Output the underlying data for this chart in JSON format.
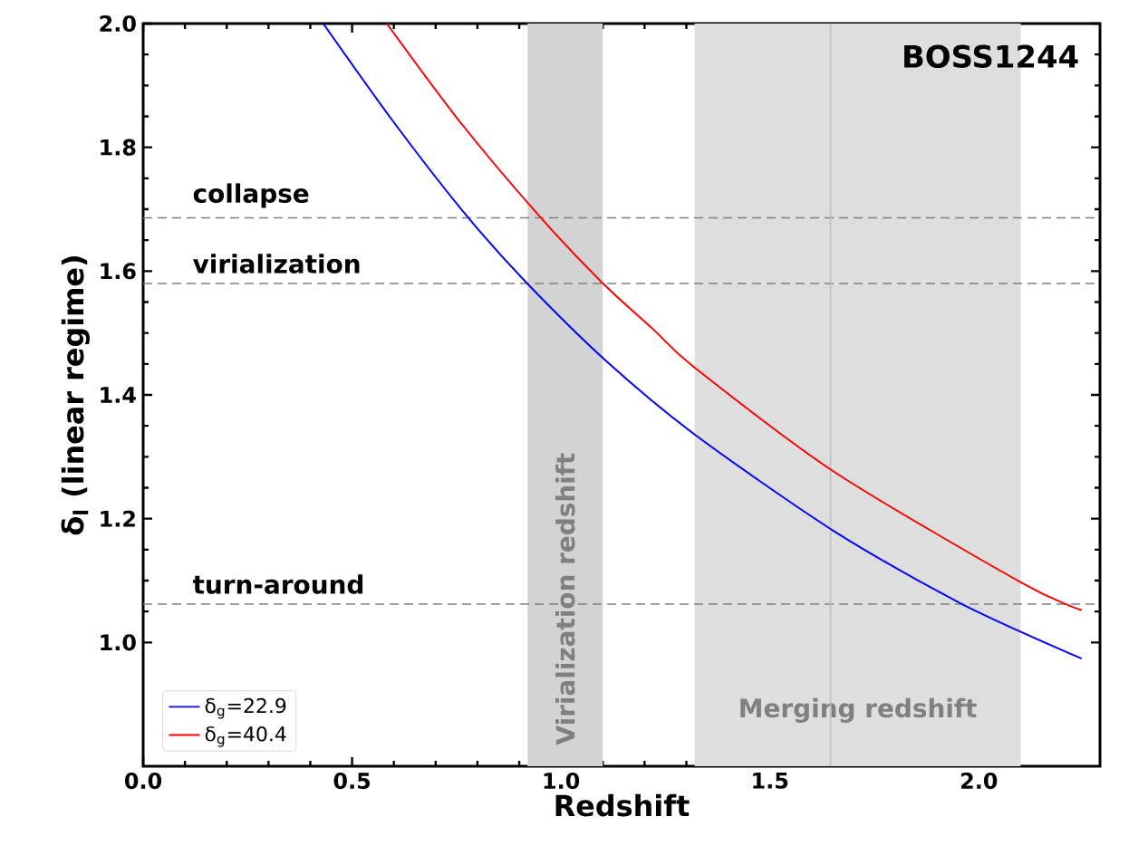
{
  "chart_data": {
    "type": "line",
    "xlabel": "Redshift",
    "ylabel": "δ$_{l}$ (linear regime)",
    "xlim": [
      0,
      2.29
    ],
    "ylim": [
      0.8,
      2.0
    ],
    "xticks": [
      {
        "value": 0,
        "label": "0.0"
      },
      {
        "value": 0.5,
        "label": "0.5"
      },
      {
        "value": 1,
        "label": "1.0"
      },
      {
        "value": 1.5,
        "label": "1.5"
      },
      {
        "value": 2,
        "label": "2.0"
      }
    ],
    "yticks": [
      {
        "value": 1,
        "label": "1.0"
      },
      {
        "value": 1.2,
        "label": "1.2"
      },
      {
        "value": 1.4,
        "label": "1.4"
      },
      {
        "value": 1.6,
        "label": "1.6"
      },
      {
        "value": 1.8,
        "label": "1.8"
      },
      {
        "value": 2,
        "label": "2.0"
      }
    ],
    "series": [
      {
        "name": "δ$_{g}$=22.9",
        "color": "#0000ff",
        "x": [
          0.431,
          0.597,
          0.771,
          0.915,
          1.111,
          1.32,
          1.653,
          1.957,
          2.246
        ],
        "values": [
          2.0,
          1.843,
          1.692,
          1.583,
          1.453,
          1.336,
          1.18,
          1.063,
          0.974
        ]
      },
      {
        "name": "δ$_{g}$=40.4",
        "color": "#ff0000",
        "x": [
          0.583,
          0.756,
          0.944,
          1.096,
          1.219,
          1.32,
          1.653,
          2.101,
          2.246
        ],
        "values": [
          2.0,
          1.843,
          1.692,
          1.583,
          1.507,
          1.444,
          1.276,
          1.097,
          1.052
        ]
      }
    ],
    "ref_lines": [
      {
        "axis": "y",
        "value": 1.686,
        "label": "collapse",
        "color": "#808080",
        "line_style": "dashed"
      },
      {
        "axis": "y",
        "value": 1.58,
        "label": "virialization",
        "color": "#808080",
        "line_style": "dashed"
      },
      {
        "axis": "y",
        "value": 1.062,
        "label": "turn-around",
        "color": "#808080",
        "line_style": "dashed"
      },
      {
        "axis": "x",
        "value": 1.645,
        "color": "#c0c0c0",
        "line_style": "solid"
      }
    ],
    "bands": [
      {
        "axis": "x",
        "from": 0.92,
        "to": 1.1,
        "label": "Virialization redshift",
        "color": "#d3d3d3"
      },
      {
        "axis": "x",
        "from": 1.32,
        "to": 2.1,
        "label": "Merging redshift",
        "color": "#dedede"
      }
    ],
    "annotations": [
      "BOSS1244"
    ],
    "legend": "bottom left",
    "grid": false,
    "marker": "none",
    "line_style": "solid"
  }
}
